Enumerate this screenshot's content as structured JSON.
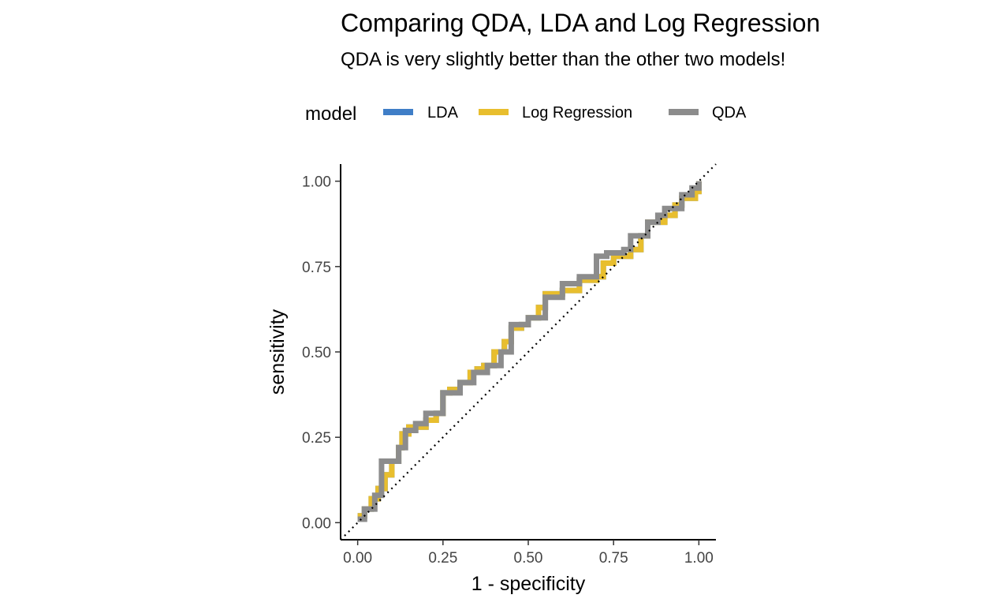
{
  "chart_data": {
    "type": "line",
    "title": "Comparing QDA, LDA and Log Regression",
    "subtitle": "QDA is very slightly better than the other two models!",
    "xlabel": "1 - specificity",
    "ylabel": "sensitivity",
    "xlim": [
      -0.05,
      1.05
    ],
    "ylim": [
      -0.05,
      1.05
    ],
    "x_ticks": [
      "0.00",
      "0.25",
      "0.50",
      "0.75",
      "1.00"
    ],
    "y_ticks": [
      "0.00",
      "0.25",
      "0.50",
      "0.75",
      "1.00"
    ],
    "x_tick_values": [
      0,
      0.25,
      0.5,
      0.75,
      1
    ],
    "y_tick_values": [
      0,
      0.25,
      0.5,
      0.75,
      1
    ],
    "grid": false,
    "legend": {
      "title": "model",
      "placement": "top"
    },
    "reference_line": {
      "style": "dotted",
      "from": [
        -0.05,
        -0.05
      ],
      "to": [
        1.05,
        1.05
      ]
    },
    "series": [
      {
        "name": "LDA",
        "color": "#3F7EC7",
        "x": [
          0,
          0.02,
          0.04,
          0.06,
          0.08,
          0.1,
          0.12,
          0.13,
          0.15,
          0.2,
          0.23,
          0.25,
          0.27,
          0.3,
          0.33,
          0.35,
          0.37,
          0.4,
          0.43,
          0.45,
          0.48,
          0.5,
          0.53,
          0.55,
          0.6,
          0.65,
          0.7,
          0.72,
          0.75,
          0.8,
          0.83,
          0.85,
          0.9,
          0.93,
          0.95,
          0.99,
          1
        ],
        "y": [
          0.02,
          0.04,
          0.07,
          0.1,
          0.14,
          0.18,
          0.22,
          0.26,
          0.28,
          0.3,
          0.32,
          0.38,
          0.39,
          0.41,
          0.44,
          0.45,
          0.46,
          0.5,
          0.53,
          0.57,
          0.58,
          0.6,
          0.63,
          0.67,
          0.68,
          0.71,
          0.72,
          0.76,
          0.78,
          0.8,
          0.84,
          0.88,
          0.9,
          0.93,
          0.95,
          0.97,
          1
        ]
      },
      {
        "name": "Log Regression",
        "color": "#E8BE2E",
        "x": [
          0,
          0.02,
          0.04,
          0.06,
          0.08,
          0.1,
          0.12,
          0.13,
          0.15,
          0.2,
          0.23,
          0.25,
          0.27,
          0.3,
          0.33,
          0.35,
          0.37,
          0.4,
          0.43,
          0.45,
          0.48,
          0.5,
          0.53,
          0.55,
          0.6,
          0.65,
          0.7,
          0.72,
          0.75,
          0.8,
          0.83,
          0.85,
          0.9,
          0.93,
          0.95,
          0.99,
          1
        ],
        "y": [
          0.02,
          0.04,
          0.07,
          0.1,
          0.14,
          0.18,
          0.22,
          0.26,
          0.28,
          0.3,
          0.32,
          0.38,
          0.39,
          0.41,
          0.44,
          0.45,
          0.46,
          0.5,
          0.53,
          0.57,
          0.58,
          0.6,
          0.63,
          0.67,
          0.68,
          0.71,
          0.72,
          0.76,
          0.78,
          0.8,
          0.84,
          0.88,
          0.9,
          0.93,
          0.95,
          0.97,
          1
        ]
      },
      {
        "name": "QDA",
        "color": "#8C8C8C",
        "x": [
          0,
          0.02,
          0.05,
          0.07,
          0.12,
          0.14,
          0.17,
          0.2,
          0.25,
          0.3,
          0.34,
          0.38,
          0.42,
          0.45,
          0.5,
          0.55,
          0.6,
          0.65,
          0.7,
          0.73,
          0.78,
          0.8,
          0.85,
          0.88,
          0.9,
          0.95,
          0.98,
          1
        ],
        "y": [
          0.01,
          0.04,
          0.08,
          0.18,
          0.22,
          0.27,
          0.29,
          0.32,
          0.38,
          0.41,
          0.44,
          0.46,
          0.5,
          0.58,
          0.6,
          0.66,
          0.7,
          0.72,
          0.78,
          0.79,
          0.8,
          0.84,
          0.88,
          0.9,
          0.92,
          0.96,
          0.98,
          1
        ]
      }
    ]
  }
}
